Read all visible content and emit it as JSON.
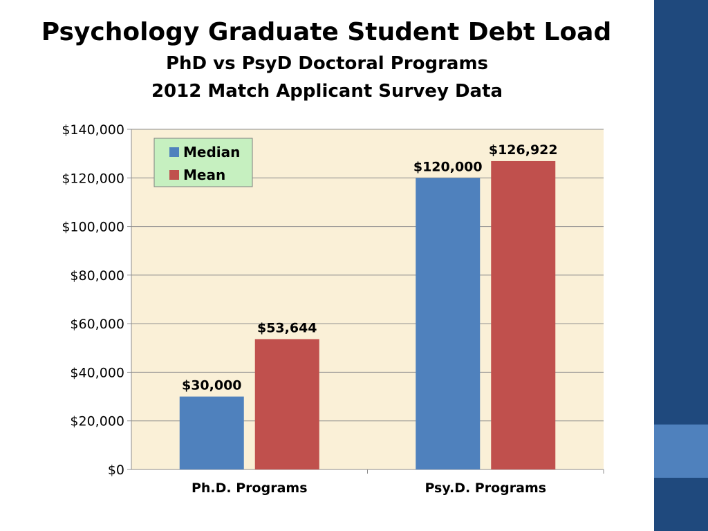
{
  "colors": {
    "side_band": "#1f497d",
    "side_accent": "#4f81bd",
    "plot_background": "#faf0d7",
    "legend_background": "#c6f0c0"
  },
  "chart_data": {
    "type": "bar",
    "title": "Psychology Graduate Student Debt Load",
    "subtitle": [
      "PhD vs PsyD Doctoral Programs",
      "2012 Match Applicant Survey Data"
    ],
    "categories": [
      "Ph.D. Programs",
      "Psy.D. Programs"
    ],
    "series": [
      {
        "name": "Median",
        "color": "#4f81bd",
        "values": [
          30000,
          120000
        ],
        "labels": [
          "$30,000",
          "$120,000"
        ]
      },
      {
        "name": "Mean",
        "color": "#c0504d",
        "values": [
          53644,
          126922
        ],
        "labels": [
          "$53,644",
          "$126,922"
        ]
      }
    ],
    "ylim": [
      0,
      140000
    ],
    "yticks": [
      0,
      20000,
      40000,
      60000,
      80000,
      100000,
      120000,
      140000
    ],
    "ytick_labels": [
      "$0",
      "$20,000",
      "$40,000",
      "$60,000",
      "$80,000",
      "$100,000",
      "$120,000",
      "$140,000"
    ],
    "xlabel": "",
    "ylabel": "",
    "grid": true,
    "legend": "top-left"
  }
}
